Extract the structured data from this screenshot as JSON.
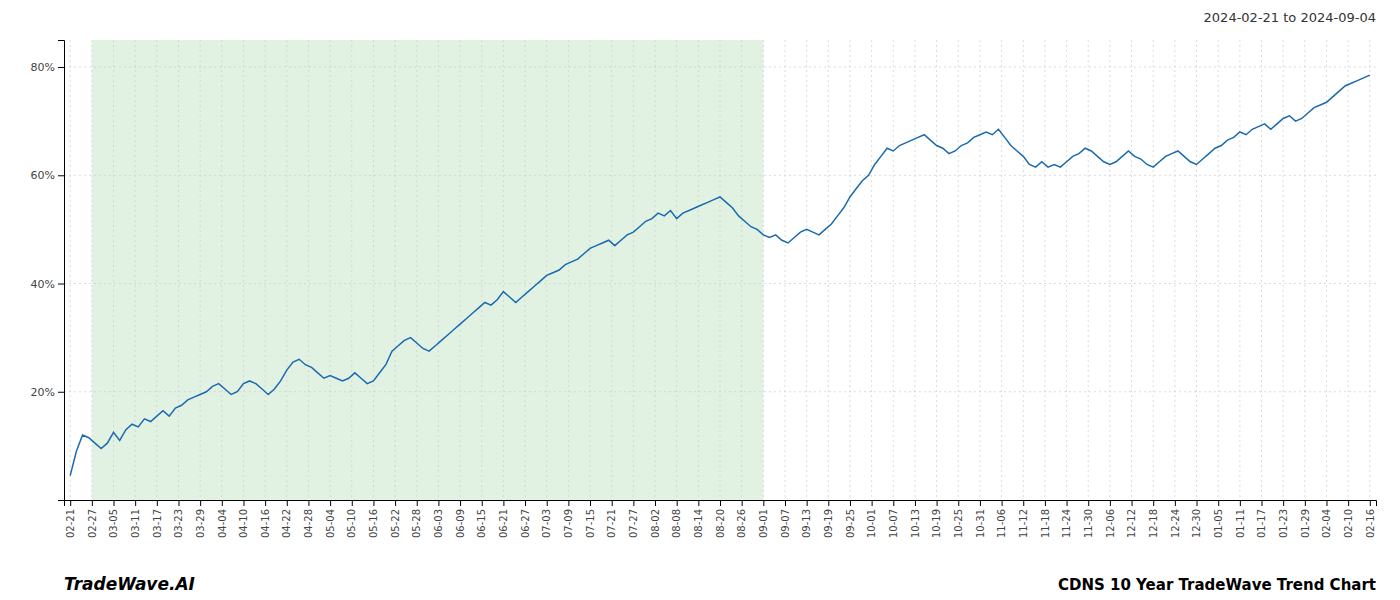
{
  "chart_data": {
    "type": "line",
    "title": "CDNS 10 Year TradeWave Trend Chart",
    "subtitle": "2024-02-21 to 2024-09-04",
    "annotations": [
      "TradeWave.AI"
    ],
    "color": "#1a6ab0",
    "grid": true,
    "xlim": [
      -1,
      211
    ],
    "ylim": [
      0,
      85
    ],
    "yticks": [
      {
        "value": 20,
        "label": "20%"
      },
      {
        "value": 40,
        "label": "40%"
      },
      {
        "value": 60,
        "label": "60%"
      },
      {
        "value": 80,
        "label": "80%"
      }
    ],
    "xticks": [
      {
        "value": 0,
        "label": "02-21"
      },
      {
        "value": 3.5,
        "label": "02-27"
      },
      {
        "value": 7,
        "label": "03-05"
      },
      {
        "value": 10.5,
        "label": "03-11"
      },
      {
        "value": 14,
        "label": "03-17"
      },
      {
        "value": 17.5,
        "label": "03-23"
      },
      {
        "value": 21,
        "label": "03-29"
      },
      {
        "value": 24.5,
        "label": "04-04"
      },
      {
        "value": 28,
        "label": "04-10"
      },
      {
        "value": 31.5,
        "label": "04-16"
      },
      {
        "value": 35,
        "label": "04-22"
      },
      {
        "value": 38.5,
        "label": "04-28"
      },
      {
        "value": 42,
        "label": "05-04"
      },
      {
        "value": 45.5,
        "label": "05-10"
      },
      {
        "value": 49,
        "label": "05-16"
      },
      {
        "value": 52.5,
        "label": "05-22"
      },
      {
        "value": 56,
        "label": "05-28"
      },
      {
        "value": 59.5,
        "label": "06-03"
      },
      {
        "value": 63,
        "label": "06-09"
      },
      {
        "value": 66.5,
        "label": "06-15"
      },
      {
        "value": 70,
        "label": "06-21"
      },
      {
        "value": 73.5,
        "label": "06-27"
      },
      {
        "value": 77,
        "label": "07-03"
      },
      {
        "value": 80.5,
        "label": "07-09"
      },
      {
        "value": 84,
        "label": "07-15"
      },
      {
        "value": 87.5,
        "label": "07-21"
      },
      {
        "value": 91,
        "label": "07-27"
      },
      {
        "value": 94.5,
        "label": "08-02"
      },
      {
        "value": 98,
        "label": "08-08"
      },
      {
        "value": 101.5,
        "label": "08-14"
      },
      {
        "value": 105,
        "label": "08-20"
      },
      {
        "value": 108.5,
        "label": "08-26"
      },
      {
        "value": 112,
        "label": "09-01"
      },
      {
        "value": 115.5,
        "label": "09-07"
      },
      {
        "value": 119,
        "label": "09-13"
      },
      {
        "value": 122.5,
        "label": "09-19"
      },
      {
        "value": 126,
        "label": "09-25"
      },
      {
        "value": 129.5,
        "label": "10-01"
      },
      {
        "value": 133,
        "label": "10-07"
      },
      {
        "value": 136.5,
        "label": "10-13"
      },
      {
        "value": 140,
        "label": "10-19"
      },
      {
        "value": 143.5,
        "label": "10-25"
      },
      {
        "value": 147,
        "label": "10-31"
      },
      {
        "value": 150.5,
        "label": "11-06"
      },
      {
        "value": 154,
        "label": "11-12"
      },
      {
        "value": 157.5,
        "label": "11-18"
      },
      {
        "value": 161,
        "label": "11-24"
      },
      {
        "value": 164.5,
        "label": "11-30"
      },
      {
        "value": 168,
        "label": "12-06"
      },
      {
        "value": 171.5,
        "label": "12-12"
      },
      {
        "value": 175,
        "label": "12-18"
      },
      {
        "value": 178.5,
        "label": "12-24"
      },
      {
        "value": 182,
        "label": "12-30"
      },
      {
        "value": 185.5,
        "label": "01-05"
      },
      {
        "value": 189,
        "label": "01-11"
      },
      {
        "value": 192.5,
        "label": "01-17"
      },
      {
        "value": 196,
        "label": "01-23"
      },
      {
        "value": 199.5,
        "label": "01-29"
      },
      {
        "value": 203,
        "label": "02-04"
      },
      {
        "value": 206.5,
        "label": "02-10"
      },
      {
        "value": 210,
        "label": "02-16"
      }
    ],
    "spans": [
      {
        "x0": 3.5,
        "x1": 112,
        "color": "#d6ecd6"
      }
    ],
    "x": [
      0,
      1,
      2,
      3,
      4,
      5,
      6,
      7,
      8,
      9,
      10,
      11,
      12,
      13,
      14,
      15,
      16,
      17,
      18,
      19,
      20,
      21,
      22,
      23,
      24,
      25,
      26,
      27,
      28,
      29,
      30,
      31,
      32,
      33,
      34,
      35,
      36,
      37,
      38,
      39,
      40,
      41,
      42,
      43,
      44,
      45,
      46,
      47,
      48,
      49,
      50,
      51,
      52,
      53,
      54,
      55,
      56,
      57,
      58,
      59,
      60,
      61,
      62,
      63,
      64,
      65,
      66,
      67,
      68,
      69,
      70,
      71,
      72,
      73,
      74,
      75,
      76,
      77,
      78,
      79,
      80,
      81,
      82,
      83,
      84,
      85,
      86,
      87,
      88,
      89,
      90,
      91,
      92,
      93,
      94,
      95,
      96,
      97,
      98,
      99,
      100,
      101,
      102,
      103,
      104,
      105,
      106,
      107,
      108,
      109,
      110,
      111,
      112,
      113,
      114,
      115,
      116,
      117,
      118,
      119,
      120,
      121,
      122,
      123,
      124,
      125,
      126,
      127,
      128,
      129,
      130,
      131,
      132,
      133,
      134,
      135,
      136,
      137,
      138,
      139,
      140,
      141,
      142,
      143,
      144,
      145,
      146,
      147,
      148,
      149,
      150,
      151,
      152,
      153,
      154,
      155,
      156,
      157,
      158,
      159,
      160,
      161,
      162,
      163,
      164,
      165,
      166,
      167,
      168,
      169,
      170,
      171,
      172,
      173,
      174,
      175,
      176,
      177,
      178,
      179,
      180,
      181,
      182,
      183,
      184,
      185,
      186,
      187,
      188,
      189,
      190,
      191,
      192,
      193,
      194,
      195,
      196,
      197,
      198,
      199,
      200,
      201,
      202,
      203,
      204,
      205,
      206,
      207,
      208,
      209,
      210
    ],
    "values": [
      4.5,
      9.0,
      12.0,
      11.5,
      10.5,
      9.5,
      10.5,
      12.5,
      11.0,
      13.0,
      14.0,
      13.5,
      15.0,
      14.5,
      15.5,
      16.5,
      15.5,
      17.0,
      17.5,
      18.5,
      19.0,
      19.5,
      20.0,
      21.0,
      21.5,
      20.5,
      19.5,
      20.0,
      21.5,
      22.0,
      21.5,
      20.5,
      19.5,
      20.5,
      22.0,
      24.0,
      25.5,
      26.0,
      25.0,
      24.5,
      23.5,
      22.5,
      23.0,
      22.5,
      22.0,
      22.5,
      23.5,
      22.5,
      21.5,
      22.0,
      23.5,
      25.0,
      27.5,
      28.5,
      29.5,
      30.0,
      29.0,
      28.0,
      27.5,
      28.5,
      29.5,
      30.5,
      31.5,
      32.5,
      33.5,
      34.5,
      35.5,
      36.5,
      36.0,
      37.0,
      38.5,
      37.5,
      36.5,
      37.5,
      38.5,
      39.5,
      40.5,
      41.5,
      42.0,
      42.5,
      43.5,
      44.0,
      44.5,
      45.5,
      46.5,
      47.0,
      47.5,
      48.0,
      47.0,
      48.0,
      49.0,
      49.5,
      50.5,
      51.5,
      52.0,
      53.0,
      52.5,
      53.5,
      52.0,
      53.0,
      53.5,
      54.0,
      54.5,
      55.0,
      55.5,
      56.0,
      55.0,
      54.0,
      52.5,
      51.5,
      50.5,
      50.0,
      49.0,
      48.5,
      49.0,
      48.0,
      47.5,
      48.5,
      49.5,
      50.0,
      49.5,
      49.0,
      50.0,
      51.0,
      52.5,
      54.0,
      56.0,
      57.5,
      59.0,
      60.0,
      62.0,
      63.5,
      65.0,
      64.5,
      65.5,
      66.0,
      66.5,
      67.0,
      67.5,
      66.5,
      65.5,
      65.0,
      64.0,
      64.5,
      65.5,
      66.0,
      67.0,
      67.5,
      68.0,
      67.5,
      68.5,
      67.0,
      65.5,
      64.5,
      63.5,
      62.0,
      61.5,
      62.5,
      61.5,
      62.0,
      61.5,
      62.5,
      63.5,
      64.0,
      65.0,
      64.5,
      63.5,
      62.5,
      62.0,
      62.5,
      63.5,
      64.5,
      63.5,
      63.0,
      62.0,
      61.5,
      62.5,
      63.5,
      64.0,
      64.5,
      63.5,
      62.5,
      62.0,
      63.0,
      64.0,
      65.0,
      65.5,
      66.5,
      67.0,
      68.0,
      67.5,
      68.5,
      69.0,
      69.5,
      68.5,
      69.5,
      70.5,
      71.0,
      70.0,
      70.5,
      71.5,
      72.5,
      73.0,
      73.5,
      74.5,
      75.5,
      76.5,
      77.0,
      77.5,
      78.0,
      78.5
    ]
  }
}
